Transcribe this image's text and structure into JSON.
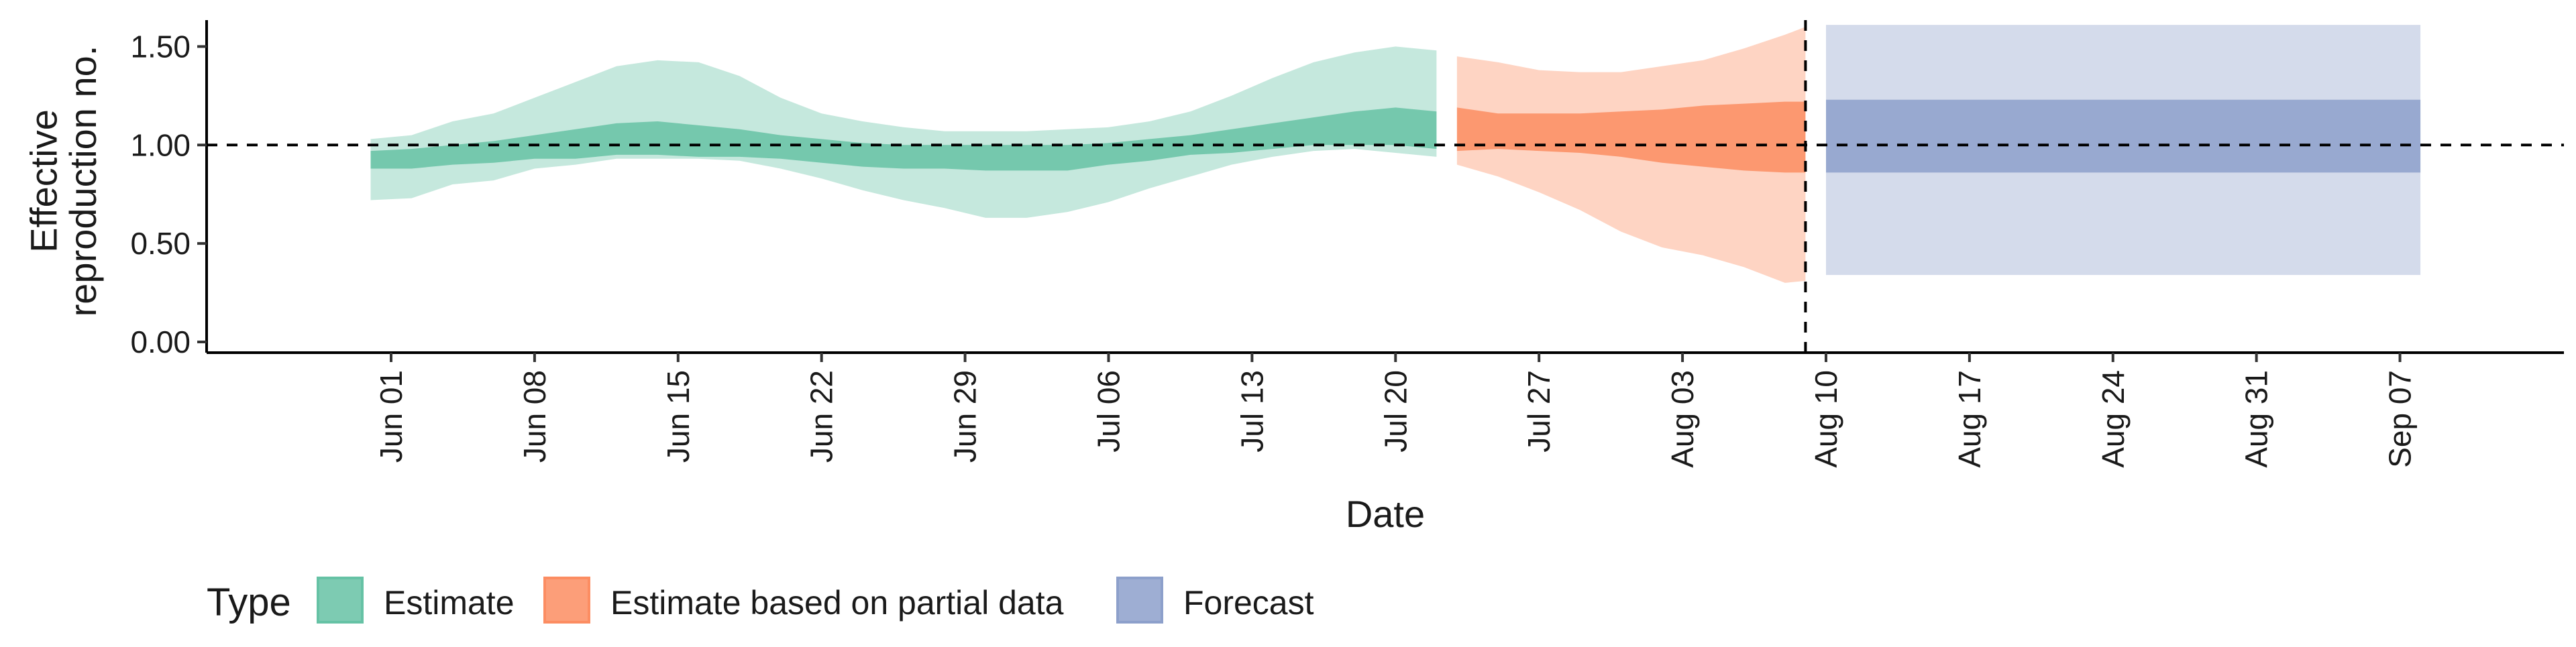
{
  "chart_data": {
    "type": "area",
    "title": "",
    "xlabel": "Date",
    "ylabel": [
      "Effective",
      "reproduction no."
    ],
    "ylim": [
      0,
      1.6
    ],
    "y_ticks": [
      "0.00",
      "0.50",
      "1.00",
      "1.50"
    ],
    "y_tick_values": [
      0,
      0.5,
      1.0,
      1.5
    ],
    "x_range": [
      "2020-05-23",
      "2020-09-15"
    ],
    "x_ticks": [
      {
        "date": "2020-06-01",
        "label": "Jun 01"
      },
      {
        "date": "2020-06-08",
        "label": "Jun 08"
      },
      {
        "date": "2020-06-15",
        "label": "Jun 15"
      },
      {
        "date": "2020-06-22",
        "label": "Jun 22"
      },
      {
        "date": "2020-06-29",
        "label": "Jun 29"
      },
      {
        "date": "2020-07-06",
        "label": "Jul 06"
      },
      {
        "date": "2020-07-13",
        "label": "Jul 13"
      },
      {
        "date": "2020-07-20",
        "label": "Jul 20"
      },
      {
        "date": "2020-07-27",
        "label": "Jul 27"
      },
      {
        "date": "2020-08-03",
        "label": "Aug 03"
      },
      {
        "date": "2020-08-10",
        "label": "Aug 10"
      },
      {
        "date": "2020-08-17",
        "label": "Aug 17"
      },
      {
        "date": "2020-08-24",
        "label": "Aug 24"
      },
      {
        "date": "2020-08-31",
        "label": "Aug 31"
      },
      {
        "date": "2020-09-07",
        "label": "Sep 07"
      }
    ],
    "reference_line_y": 1.0,
    "forecast_start_line_x": "2020-08-09",
    "grid": false,
    "legend": {
      "title": "Type",
      "position": "bottom",
      "entries": [
        "Estimate",
        "Estimate based on partial data",
        "Forecast"
      ]
    },
    "series": [
      {
        "name": "Estimate",
        "fill_color": "#66c2a5",
        "points": [
          {
            "x": "2020-05-31",
            "outer": [
              0.72,
              1.03
            ],
            "inner": [
              0.88,
              0.97
            ]
          },
          {
            "x": "2020-06-02",
            "outer": [
              0.73,
              1.05
            ],
            "inner": [
              0.88,
              0.98
            ]
          },
          {
            "x": "2020-06-04",
            "outer": [
              0.8,
              1.12
            ],
            "inner": [
              0.9,
              1.0
            ]
          },
          {
            "x": "2020-06-06",
            "outer": [
              0.82,
              1.16
            ],
            "inner": [
              0.91,
              1.02
            ]
          },
          {
            "x": "2020-06-08",
            "outer": [
              0.88,
              1.24
            ],
            "inner": [
              0.93,
              1.05
            ]
          },
          {
            "x": "2020-06-10",
            "outer": [
              0.9,
              1.32
            ],
            "inner": [
              0.93,
              1.08
            ]
          },
          {
            "x": "2020-06-12",
            "outer": [
              0.93,
              1.4
            ],
            "inner": [
              0.95,
              1.11
            ]
          },
          {
            "x": "2020-06-14",
            "outer": [
              0.93,
              1.43
            ],
            "inner": [
              0.95,
              1.12
            ]
          },
          {
            "x": "2020-06-16",
            "outer": [
              0.93,
              1.42
            ],
            "inner": [
              0.94,
              1.1
            ]
          },
          {
            "x": "2020-06-18",
            "outer": [
              0.92,
              1.35
            ],
            "inner": [
              0.94,
              1.08
            ]
          },
          {
            "x": "2020-06-20",
            "outer": [
              0.88,
              1.24
            ],
            "inner": [
              0.93,
              1.05
            ]
          },
          {
            "x": "2020-06-22",
            "outer": [
              0.83,
              1.16
            ],
            "inner": [
              0.91,
              1.03
            ]
          },
          {
            "x": "2020-06-24",
            "outer": [
              0.77,
              1.12
            ],
            "inner": [
              0.89,
              1.01
            ]
          },
          {
            "x": "2020-06-26",
            "outer": [
              0.72,
              1.09
            ],
            "inner": [
              0.88,
              1.0
            ]
          },
          {
            "x": "2020-06-28",
            "outer": [
              0.68,
              1.07
            ],
            "inner": [
              0.88,
              1.0
            ]
          },
          {
            "x": "2020-06-30",
            "outer": [
              0.63,
              1.07
            ],
            "inner": [
              0.87,
              1.0
            ]
          },
          {
            "x": "2020-07-02",
            "outer": [
              0.63,
              1.07
            ],
            "inner": [
              0.87,
              1.0
            ]
          },
          {
            "x": "2020-07-04",
            "outer": [
              0.66,
              1.08
            ],
            "inner": [
              0.87,
              1.0
            ]
          },
          {
            "x": "2020-07-06",
            "outer": [
              0.71,
              1.09
            ],
            "inner": [
              0.9,
              1.01
            ]
          },
          {
            "x": "2020-07-08",
            "outer": [
              0.78,
              1.12
            ],
            "inner": [
              0.92,
              1.03
            ]
          },
          {
            "x": "2020-07-10",
            "outer": [
              0.84,
              1.17
            ],
            "inner": [
              0.95,
              1.05
            ]
          },
          {
            "x": "2020-07-12",
            "outer": [
              0.9,
              1.25
            ],
            "inner": [
              0.96,
              1.08
            ]
          },
          {
            "x": "2020-07-14",
            "outer": [
              0.94,
              1.34
            ],
            "inner": [
              0.98,
              1.11
            ]
          },
          {
            "x": "2020-07-16",
            "outer": [
              0.97,
              1.42
            ],
            "inner": [
              1.0,
              1.14
            ]
          },
          {
            "x": "2020-07-18",
            "outer": [
              0.98,
              1.47
            ],
            "inner": [
              1.0,
              1.17
            ]
          },
          {
            "x": "2020-07-20",
            "outer": [
              0.96,
              1.5
            ],
            "inner": [
              1.0,
              1.19
            ]
          },
          {
            "x": "2020-07-22",
            "outer": [
              0.94,
              1.48
            ],
            "inner": [
              0.98,
              1.17
            ]
          }
        ]
      },
      {
        "name": "Estimate based on partial data",
        "fill_color": "#fc8d62",
        "points": [
          {
            "x": "2020-07-23",
            "outer": [
              0.9,
              1.45
            ],
            "inner": [
              0.97,
              1.19
            ]
          },
          {
            "x": "2020-07-25",
            "outer": [
              0.84,
              1.42
            ],
            "inner": [
              0.98,
              1.16
            ]
          },
          {
            "x": "2020-07-27",
            "outer": [
              0.76,
              1.38
            ],
            "inner": [
              0.97,
              1.16
            ]
          },
          {
            "x": "2020-07-29",
            "outer": [
              0.67,
              1.37
            ],
            "inner": [
              0.96,
              1.16
            ]
          },
          {
            "x": "2020-07-31",
            "outer": [
              0.56,
              1.37
            ],
            "inner": [
              0.94,
              1.17
            ]
          },
          {
            "x": "2020-08-02",
            "outer": [
              0.48,
              1.4
            ],
            "inner": [
              0.91,
              1.18
            ]
          },
          {
            "x": "2020-08-04",
            "outer": [
              0.44,
              1.43
            ],
            "inner": [
              0.89,
              1.2
            ]
          },
          {
            "x": "2020-08-06",
            "outer": [
              0.38,
              1.49
            ],
            "inner": [
              0.87,
              1.21
            ]
          },
          {
            "x": "2020-08-08",
            "outer": [
              0.3,
              1.56
            ],
            "inner": [
              0.86,
              1.22
            ]
          },
          {
            "x": "2020-08-09",
            "outer": [
              0.31,
              1.6
            ],
            "inner": [
              0.86,
              1.22
            ]
          }
        ]
      },
      {
        "name": "Forecast",
        "fill_color": "#8da0cb",
        "points": [
          {
            "x": "2020-08-10",
            "outer": [
              0.34,
              1.61
            ],
            "inner": [
              0.86,
              1.23
            ]
          },
          {
            "x": "2020-09-08",
            "outer": [
              0.34,
              1.61
            ],
            "inner": [
              0.86,
              1.23
            ]
          }
        ]
      }
    ]
  }
}
